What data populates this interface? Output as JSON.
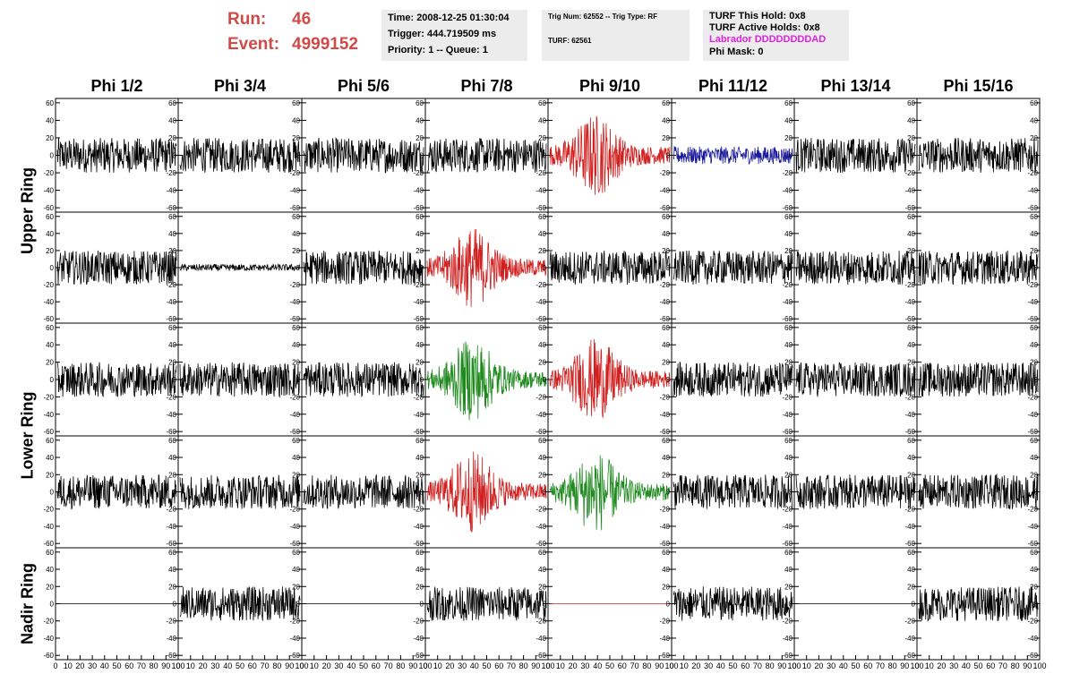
{
  "header": {
    "run_label": "Run:",
    "run_value": "46",
    "event_label": "Event:",
    "event_value": "4999152"
  },
  "time_pane": {
    "time": "Time: 2008-12-25 01:30:04",
    "trigger": "Trigger: 444.719509 ms",
    "priority": "Priority: 1 -- Queue: 1"
  },
  "trig_pane": {
    "trig": "Trig Num: 62552 -- Trig Type: RF",
    "turf": "TURF: 62561"
  },
  "turf_pane": {
    "this_hold": "TURF This Hold: 0x8",
    "active_holds": "TURF Active Holds: 0x8",
    "labrador": "Labrador DDDDDDDDAD",
    "labrador_color": "#e020e0",
    "phi_mask": "Phi Mask: 0"
  },
  "columns": [
    "Phi 1/2",
    "Phi 3/4",
    "Phi 5/6",
    "Phi 7/8",
    "Phi 9/10",
    "Phi 11/12",
    "Phi 13/14",
    "Phi 15/16"
  ],
  "rows": [
    {
      "label": "Upper Ring"
    },
    {
      "label": "Lower Ring"
    },
    {
      "label": "Nadir Ring"
    }
  ],
  "chart_data": {
    "type": "line",
    "y_ticks": [
      "60",
      "40",
      "20",
      "0",
      "-20",
      "-40",
      "-60"
    ],
    "x_ticks": [
      "0",
      "10",
      "20",
      "30",
      "40",
      "50",
      "60",
      "70",
      "80",
      "90",
      "100"
    ],
    "ylim": [
      -65,
      65
    ],
    "xlim": [
      0,
      100
    ],
    "trace_colors": {
      "black": "#000000",
      "red": "#d02020",
      "blue": "#1a1a9a",
      "green": "#1e8a1e"
    },
    "panels": [
      [
        "black",
        "black",
        "black",
        "black",
        "red",
        "blue",
        "black",
        "black"
      ],
      [
        "black",
        "flat",
        "black",
        "red",
        "black",
        "black",
        "black",
        "black"
      ],
      [
        "black",
        "black",
        "black",
        "green",
        "red",
        "black",
        "black",
        "black"
      ],
      [
        "black",
        "black",
        "black",
        "red",
        "green",
        "black",
        "black",
        "black"
      ],
      [
        "zero",
        "black",
        "zero",
        "black",
        "zerored",
        "black",
        "zero",
        "black"
      ]
    ]
  }
}
